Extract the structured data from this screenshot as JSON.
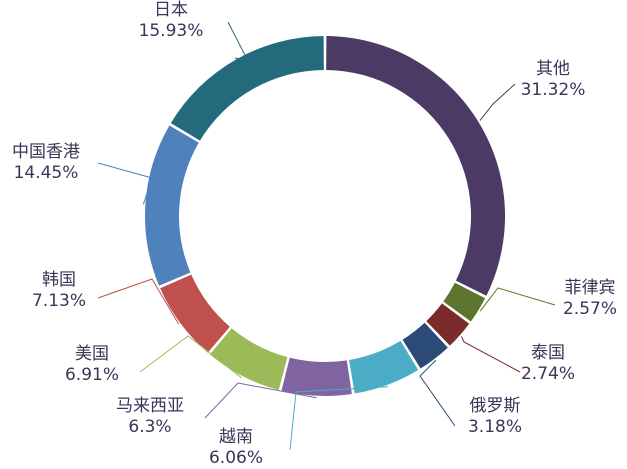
{
  "chart_data": {
    "type": "pie",
    "style": "donut",
    "title": "",
    "start_angle_deg": 0,
    "direction": "clockwise",
    "slices": [
      {
        "label": "其他",
        "value": 31.32,
        "pct": "31.32%",
        "color": "#4b3a64",
        "leader": "#4b3a64"
      },
      {
        "label": "菲律宾",
        "value": 2.57,
        "pct": "2.57%",
        "color": "#5e7530",
        "leader": "#5e7530"
      },
      {
        "label": "泰国",
        "value": 2.74,
        "pct": "2.74%",
        "color": "#7a2c2a",
        "leader": "#7a2c2a"
      },
      {
        "label": "俄罗斯",
        "value": 3.18,
        "pct": "3.18%",
        "color": "#2b4a78",
        "leader": "#2b4a78"
      },
      {
        "label": "越南",
        "value": 6.06,
        "pct": "6.06%",
        "color": "#f79646",
        "leader": "#f79646"
      },
      {
        "label": "马来西亚",
        "value": 6.3,
        "pct": "6.3%",
        "color": "#4bacc6",
        "leader": "#4bacc6"
      },
      {
        "label": "美国",
        "value": 6.91,
        "pct": "6.91%",
        "color": "#8064a2",
        "leader": "#8064a2"
      },
      {
        "label": "韩国",
        "value": 7.13,
        "pct": "7.13%",
        "color": "#9bbb59",
        "leader": "#9bbb59"
      },
      {
        "label": "中国香港",
        "value": 14.45,
        "pct": "14.45%",
        "color": "#c0504d",
        "leader": "#c0504d"
      },
      {
        "label": "日本",
        "value": 15.93,
        "pct": "15.93%",
        "color": "#4f81bd",
        "leader": "#4f81bd"
      }
    ]
  }
}
